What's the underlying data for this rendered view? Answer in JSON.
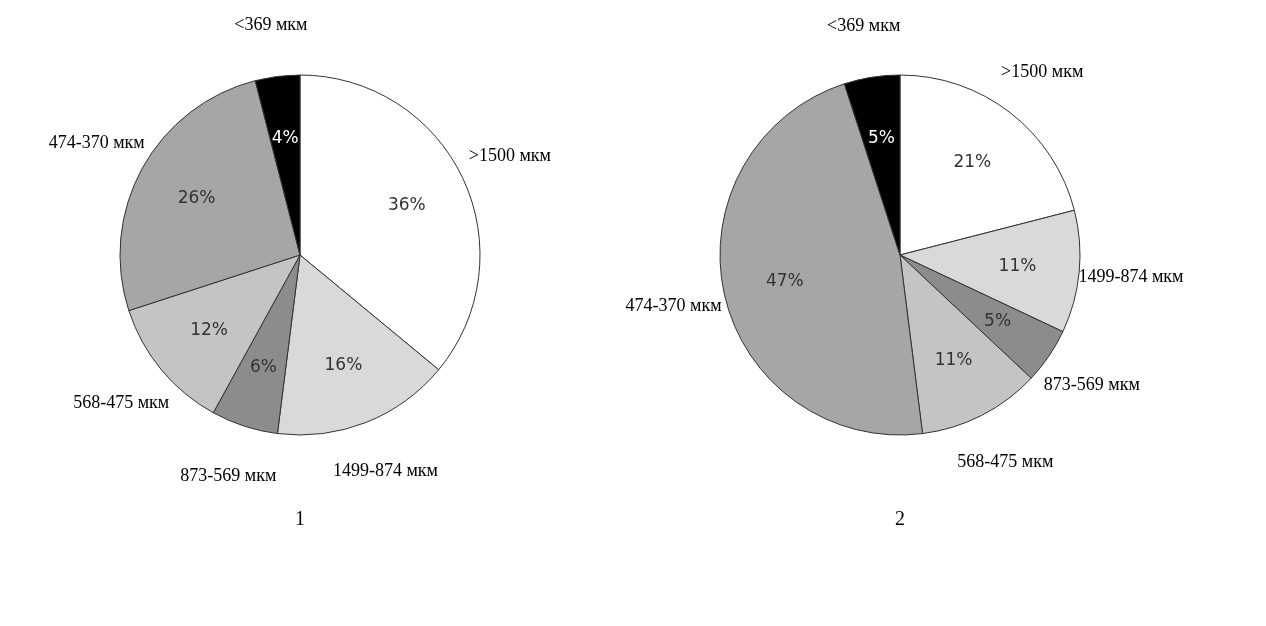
{
  "chart_data": [
    {
      "type": "pie",
      "title": "1",
      "categories": [
        ">1500 мкм",
        "1499-874 мкм",
        "873-569 мкм",
        "568-475 мкм",
        "474-370 мкм",
        "<369 мкм"
      ],
      "values": [
        36,
        16,
        6,
        12,
        26,
        4
      ],
      "colors": [
        "#ffffff",
        "#d9d9d9",
        "#8c8c8c",
        "#c4c4c4",
        "#a6a6a6",
        "#000000"
      ],
      "value_labels": [
        "36%",
        "16%",
        "6%",
        "12%",
        "26%",
        "4%"
      ]
    },
    {
      "type": "pie",
      "title": "2",
      "categories": [
        ">1500 мкм",
        "1499-874 мкм",
        "873-569 мкм",
        "568-475 мкм",
        "474-370 мкм",
        "<369 мкм"
      ],
      "values": [
        21,
        11,
        5,
        11,
        47,
        5
      ],
      "colors": [
        "#ffffff",
        "#d9d9d9",
        "#8c8c8c",
        "#c4c4c4",
        "#a6a6a6",
        "#000000"
      ],
      "value_labels": [
        "21%",
        "11%",
        "5%",
        "11%",
        "47%",
        "5%"
      ]
    }
  ]
}
